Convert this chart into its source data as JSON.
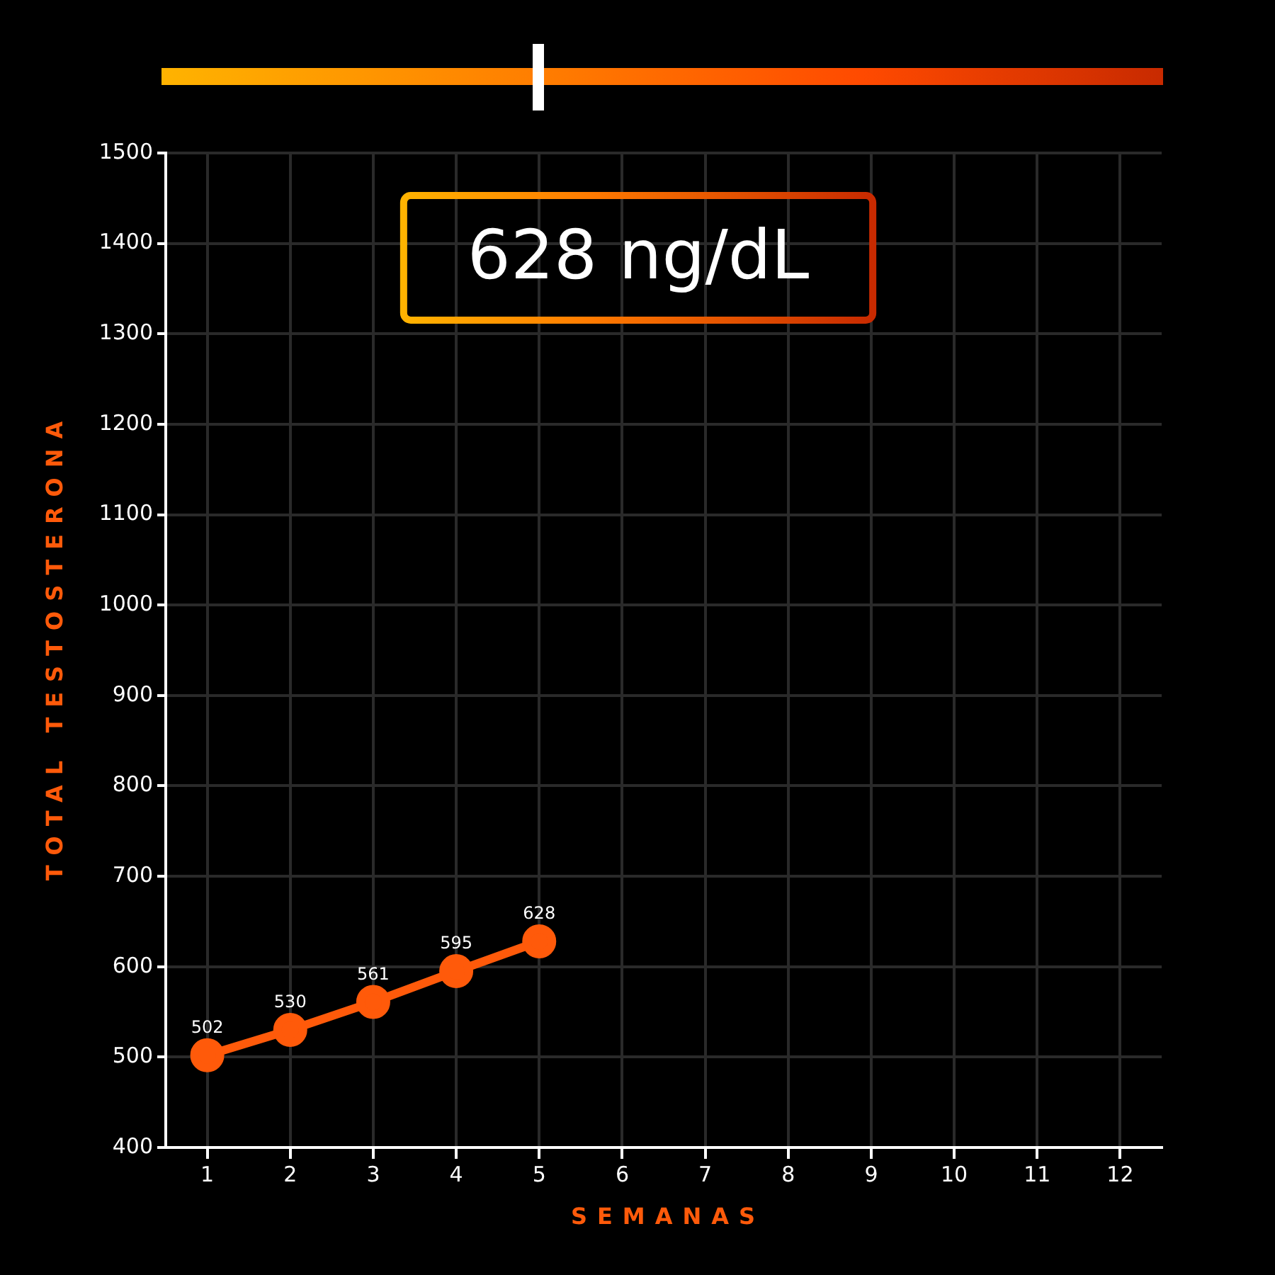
{
  "chart_data": {
    "type": "line",
    "xlabel": "SEMANAS",
    "ylabel": "TOTAL TESTOSTERONA",
    "x": [
      1,
      2,
      3,
      4,
      5
    ],
    "series": [
      {
        "color": "#ff5a0a",
        "values": [
          502,
          530,
          561,
          595,
          628
        ]
      }
    ],
    "xlim": [
      0.5,
      12.5
    ],
    "xticks": [
      1,
      2,
      3,
      4,
      5,
      6,
      7,
      8,
      9,
      10,
      11,
      12
    ],
    "ylim": [
      400,
      1500
    ],
    "yticks": [
      400,
      500,
      600,
      700,
      800,
      900,
      1000,
      1100,
      1200,
      1300,
      1400,
      1500
    ],
    "annotations": [
      "628 ng/dL"
    ],
    "grid": true,
    "legend": false,
    "marker": "circle",
    "line_style": "solid",
    "data_labels": true
  }
}
